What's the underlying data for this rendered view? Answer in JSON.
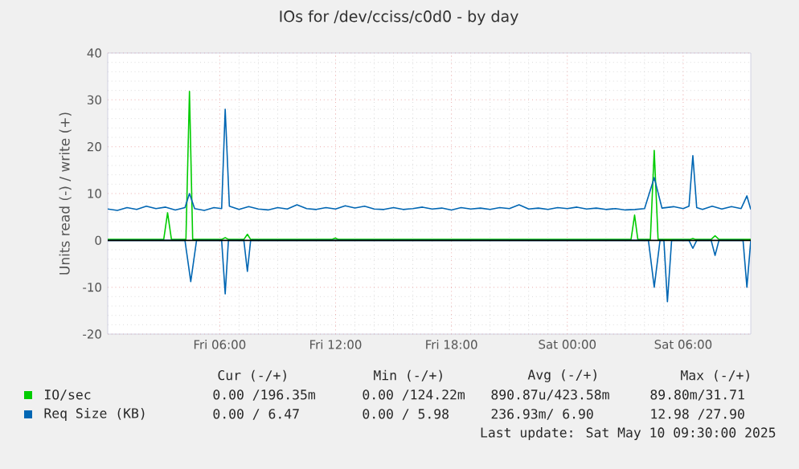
{
  "chart_data": {
    "type": "line",
    "title": "IOs for /dev/cciss/c0d0 - by day",
    "ylabel": "Units read (-) / write (+)",
    "xlim": [
      "2025-05-09T00:12",
      "2025-05-10T09:30"
    ],
    "ylim": [
      -20,
      40
    ],
    "yticks": [
      -20,
      -10,
      0,
      10,
      20,
      30,
      40
    ],
    "xticks": [
      {
        "value": "2025-05-09T06:00",
        "label": "Fri 06:00"
      },
      {
        "value": "2025-05-09T12:00",
        "label": "Fri 12:00"
      },
      {
        "value": "2025-05-09T18:00",
        "label": "Fri 18:00"
      },
      {
        "value": "2025-05-10T00:00",
        "label": "Sat 00:00"
      },
      {
        "value": "2025-05-10T06:00",
        "label": "Sat 06:00"
      }
    ],
    "grid": true,
    "legend": "bottom",
    "ref_lines": [
      {
        "axis": "y",
        "value": 0,
        "color": "#000000"
      }
    ],
    "series": [
      {
        "name": "IO/sec",
        "color": "#00cc00",
        "x": [
          "2025-05-09T00:12",
          "2025-05-09T03:06",
          "2025-05-09T03:18",
          "2025-05-09T03:30",
          "2025-05-09T04:15",
          "2025-05-09T04:26",
          "2025-05-09T04:36",
          "2025-05-09T06:06",
          "2025-05-09T06:17",
          "2025-05-09T06:27",
          "2025-05-09T07:15",
          "2025-05-09T07:26",
          "2025-05-09T07:36",
          "2025-05-09T11:48",
          "2025-05-09T11:59",
          "2025-05-09T12:09",
          "2025-05-10T03:18",
          "2025-05-10T03:29",
          "2025-05-10T03:39",
          "2025-05-10T04:18",
          "2025-05-10T04:30",
          "2025-05-10T04:42",
          "2025-05-10T06:21",
          "2025-05-10T06:30",
          "2025-05-10T06:39",
          "2025-05-10T07:27",
          "2025-05-10T07:39",
          "2025-05-10T07:51",
          "2025-05-10T09:30"
        ],
        "values": [
          0.2,
          0.2,
          5.9,
          0.2,
          0.2,
          31.8,
          0.2,
          0.2,
          0.6,
          0.2,
          0.2,
          1.3,
          0.2,
          0.2,
          0.5,
          0.2,
          0.2,
          5.4,
          0.2,
          0.2,
          19.2,
          0.2,
          0.2,
          0.4,
          0.2,
          0.2,
          1.0,
          0.2,
          0.2
        ]
      },
      {
        "name": "Req Size (KB)",
        "color": "#0066b3",
        "x": [
          "2025-05-09T00:12",
          "2025-05-09T00:42",
          "2025-05-09T01:12",
          "2025-05-09T01:42",
          "2025-05-09T02:12",
          "2025-05-09T02:42",
          "2025-05-09T03:12",
          "2025-05-09T03:42",
          "2025-05-09T04:12",
          "2025-05-09T04:26",
          "2025-05-09T04:42",
          "2025-05-09T05:12",
          "2025-05-09T05:42",
          "2025-05-09T06:06",
          "2025-05-09T06:17",
          "2025-05-09T06:30",
          "2025-05-09T07:00",
          "2025-05-09T07:30",
          "2025-05-09T08:00",
          "2025-05-09T08:30",
          "2025-05-09T09:00",
          "2025-05-09T09:30",
          "2025-05-09T10:00",
          "2025-05-09T10:30",
          "2025-05-09T11:00",
          "2025-05-09T11:30",
          "2025-05-09T12:00",
          "2025-05-09T12:30",
          "2025-05-09T13:00",
          "2025-05-09T13:30",
          "2025-05-09T14:00",
          "2025-05-09T14:30",
          "2025-05-09T15:00",
          "2025-05-09T15:30",
          "2025-05-09T16:00",
          "2025-05-09T16:30",
          "2025-05-09T17:00",
          "2025-05-09T17:30",
          "2025-05-09T18:00",
          "2025-05-09T18:30",
          "2025-05-09T19:00",
          "2025-05-09T19:30",
          "2025-05-09T20:00",
          "2025-05-09T20:30",
          "2025-05-09T21:00",
          "2025-05-09T21:30",
          "2025-05-09T22:00",
          "2025-05-09T22:30",
          "2025-05-09T23:00",
          "2025-05-09T23:30",
          "2025-05-10T00:00",
          "2025-05-10T00:30",
          "2025-05-10T01:00",
          "2025-05-10T01:30",
          "2025-05-10T02:00",
          "2025-05-10T02:30",
          "2025-05-10T03:00",
          "2025-05-10T03:30",
          "2025-05-10T04:00",
          "2025-05-10T04:30",
          "2025-05-10T04:54",
          "2025-05-10T05:30",
          "2025-05-10T06:00",
          "2025-05-10T06:18",
          "2025-05-10T06:30",
          "2025-05-10T06:42",
          "2025-05-10T07:00",
          "2025-05-10T07:30",
          "2025-05-10T08:00",
          "2025-05-10T08:30",
          "2025-05-10T09:00",
          "2025-05-10T09:18",
          "2025-05-10T09:30"
        ],
        "values": [
          6.7,
          6.4,
          7.0,
          6.6,
          7.3,
          6.8,
          7.1,
          6.5,
          7.0,
          10.0,
          6.8,
          6.4,
          7.0,
          6.8,
          28.0,
          7.3,
          6.6,
          7.2,
          6.7,
          6.5,
          7.0,
          6.7,
          7.6,
          6.8,
          6.6,
          7.0,
          6.7,
          7.4,
          6.9,
          7.3,
          6.7,
          6.6,
          7.0,
          6.6,
          6.8,
          7.1,
          6.7,
          6.9,
          6.5,
          7.0,
          6.7,
          6.9,
          6.6,
          7.0,
          6.8,
          7.6,
          6.7,
          6.9,
          6.6,
          7.0,
          6.8,
          7.1,
          6.7,
          6.9,
          6.6,
          6.8,
          6.5,
          6.6,
          6.8,
          13.4,
          6.9,
          7.2,
          6.8,
          7.3,
          18.1,
          7.0,
          6.6,
          7.3,
          6.7,
          7.2,
          6.8,
          9.5,
          6.6
        ]
      },
      {
        "color": "#0066b3",
        "x": [
          "2025-05-09T00:12",
          "2025-05-09T04:12",
          "2025-05-09T04:30",
          "2025-05-09T04:48",
          "2025-05-09T06:06",
          "2025-05-09T06:17",
          "2025-05-09T06:27",
          "2025-05-09T07:15",
          "2025-05-09T07:26",
          "2025-05-09T07:36",
          "2025-05-10T04:12",
          "2025-05-10T04:30",
          "2025-05-10T04:48",
          "2025-05-10T05:00",
          "2025-05-10T05:11",
          "2025-05-10T05:24",
          "2025-05-10T06:18",
          "2025-05-10T06:30",
          "2025-05-10T06:42",
          "2025-05-10T07:27",
          "2025-05-10T07:39",
          "2025-05-10T07:51",
          "2025-05-10T09:06",
          "2025-05-10T09:18",
          "2025-05-10T09:30"
        ],
        "values": [
          0,
          0,
          -8.8,
          0,
          0,
          -11.4,
          0,
          0,
          -6.6,
          0,
          0,
          -10.0,
          0,
          0,
          -13.1,
          0,
          0,
          -1.7,
          0,
          0,
          -3.2,
          0,
          0,
          -10.0,
          0
        ]
      }
    ],
    "annotations": [
      "Cur (-/+)",
      "Min (-/+)",
      "Avg (-/+)",
      "Max (-/+)",
      "0.00 /196.35m",
      "0.00 /124.22m",
      "890.87u/423.58m",
      "89.80m/31.71",
      "0.00 / 6.47",
      "0.00 / 5.98",
      "236.93m/ 6.90",
      "12.98 /27.90",
      "Last update: Sat May 10 09:30:00 2025"
    ]
  }
}
